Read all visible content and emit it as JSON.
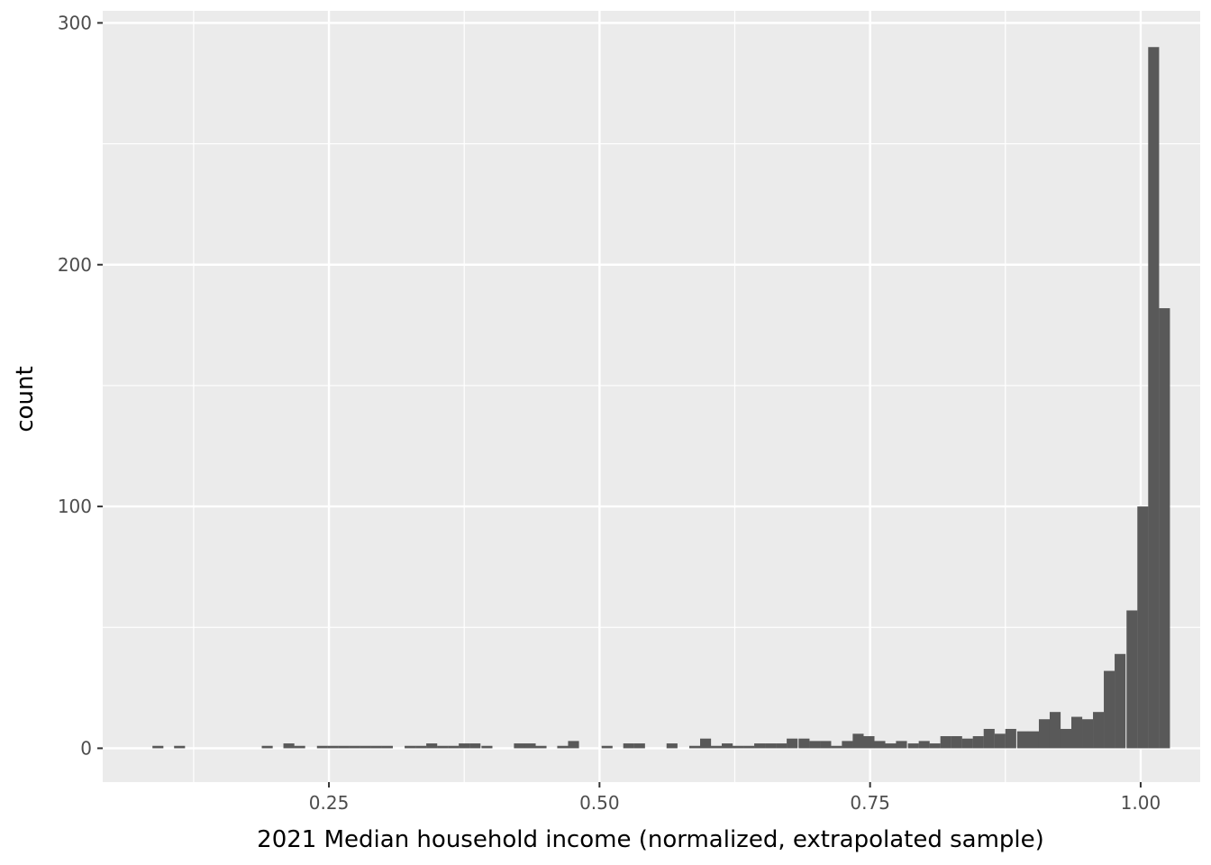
{
  "chart_data": {
    "type": "bar",
    "title": "",
    "xlabel": "2021 Median household income (normalized, extrapolated sample)",
    "ylabel": "count",
    "xlim": [
      0.041,
      1.055
    ],
    "ylim": [
      -14,
      305
    ],
    "x_ticks": [
      {
        "value": 0.25,
        "label": "0.25"
      },
      {
        "value": 0.5,
        "label": "0.50"
      },
      {
        "value": 0.75,
        "label": "0.75"
      },
      {
        "value": 1.0,
        "label": "1.00"
      }
    ],
    "y_ticks": [
      {
        "value": 0,
        "label": "0"
      },
      {
        "value": 100,
        "label": "100"
      },
      {
        "value": 200,
        "label": "200"
      },
      {
        "value": 300,
        "label": "300"
      }
    ],
    "grid": true,
    "bin_width": 0.0101,
    "bins": [
      {
        "x": 0.092,
        "count": 1
      },
      {
        "x": 0.112,
        "count": 1
      },
      {
        "x": 0.193,
        "count": 1
      },
      {
        "x": 0.213,
        "count": 2
      },
      {
        "x": 0.223,
        "count": 1
      },
      {
        "x": 0.244,
        "count": 1
      },
      {
        "x": 0.254,
        "count": 1
      },
      {
        "x": 0.264,
        "count": 1
      },
      {
        "x": 0.274,
        "count": 1
      },
      {
        "x": 0.284,
        "count": 1
      },
      {
        "x": 0.294,
        "count": 1
      },
      {
        "x": 0.304,
        "count": 1
      },
      {
        "x": 0.325,
        "count": 1
      },
      {
        "x": 0.335,
        "count": 1
      },
      {
        "x": 0.345,
        "count": 2
      },
      {
        "x": 0.355,
        "count": 1
      },
      {
        "x": 0.365,
        "count": 1
      },
      {
        "x": 0.375,
        "count": 2
      },
      {
        "x": 0.385,
        "count": 2
      },
      {
        "x": 0.396,
        "count": 1
      },
      {
        "x": 0.426,
        "count": 2
      },
      {
        "x": 0.436,
        "count": 2
      },
      {
        "x": 0.446,
        "count": 1
      },
      {
        "x": 0.466,
        "count": 1
      },
      {
        "x": 0.476,
        "count": 3
      },
      {
        "x": 0.507,
        "count": 1
      },
      {
        "x": 0.527,
        "count": 2
      },
      {
        "x": 0.537,
        "count": 2
      },
      {
        "x": 0.567,
        "count": 2
      },
      {
        "x": 0.588,
        "count": 1
      },
      {
        "x": 0.598,
        "count": 4
      },
      {
        "x": 0.608,
        "count": 1
      },
      {
        "x": 0.618,
        "count": 2
      },
      {
        "x": 0.628,
        "count": 1
      },
      {
        "x": 0.638,
        "count": 1
      },
      {
        "x": 0.648,
        "count": 2
      },
      {
        "x": 0.658,
        "count": 2
      },
      {
        "x": 0.668,
        "count": 2
      },
      {
        "x": 0.678,
        "count": 4
      },
      {
        "x": 0.689,
        "count": 4
      },
      {
        "x": 0.699,
        "count": 3
      },
      {
        "x": 0.709,
        "count": 3
      },
      {
        "x": 0.719,
        "count": 1
      },
      {
        "x": 0.729,
        "count": 3
      },
      {
        "x": 0.739,
        "count": 6
      },
      {
        "x": 0.749,
        "count": 5
      },
      {
        "x": 0.759,
        "count": 3
      },
      {
        "x": 0.769,
        "count": 2
      },
      {
        "x": 0.779,
        "count": 3
      },
      {
        "x": 0.79,
        "count": 2
      },
      {
        "x": 0.8,
        "count": 3
      },
      {
        "x": 0.81,
        "count": 2
      },
      {
        "x": 0.82,
        "count": 5
      },
      {
        "x": 0.83,
        "count": 5
      },
      {
        "x": 0.84,
        "count": 4
      },
      {
        "x": 0.85,
        "count": 5
      },
      {
        "x": 0.86,
        "count": 8
      },
      {
        "x": 0.87,
        "count": 6
      },
      {
        "x": 0.88,
        "count": 8
      },
      {
        "x": 0.891,
        "count": 7
      },
      {
        "x": 0.901,
        "count": 7
      },
      {
        "x": 0.911,
        "count": 12
      },
      {
        "x": 0.921,
        "count": 15
      },
      {
        "x": 0.931,
        "count": 8
      },
      {
        "x": 0.941,
        "count": 13
      },
      {
        "x": 0.951,
        "count": 12
      },
      {
        "x": 0.961,
        "count": 15
      },
      {
        "x": 0.971,
        "count": 32
      },
      {
        "x": 0.981,
        "count": 39
      },
      {
        "x": 0.992,
        "count": 57
      },
      {
        "x": 1.002,
        "count": 100
      },
      {
        "x": 1.012,
        "count": 290
      },
      {
        "x": 1.022,
        "count": 182
      }
    ]
  }
}
